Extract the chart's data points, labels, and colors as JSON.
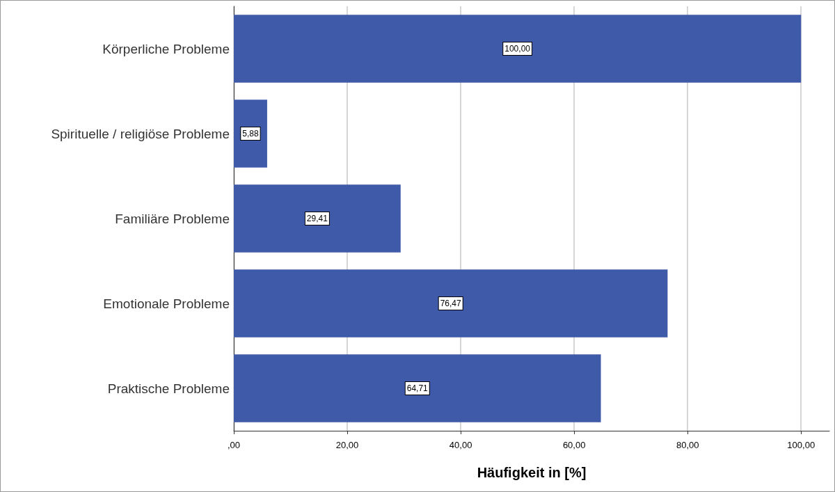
{
  "chart_data": {
    "type": "bar",
    "orientation": "horizontal",
    "xlabel": "Häufigkeit in [%]",
    "categories": [
      "Körperliche Probleme",
      "Spirituelle / religiöse Probleme",
      "Familiäre Probleme",
      "Emotionale Probleme",
      "Praktische Probleme"
    ],
    "values": [
      100,
      5.88,
      29.41,
      76.47,
      64.71
    ],
    "value_labels": [
      "100,00",
      "5,88",
      "29,41",
      "76,47",
      "64,71"
    ],
    "color": "#3f5aa8",
    "xlim": [
      0,
      105
    ],
    "xticks": [
      {
        "value": 0,
        "label": ",00"
      },
      {
        "value": 20,
        "label": "20,00"
      },
      {
        "value": 40,
        "label": "40,00"
      },
      {
        "value": 60,
        "label": "60,00"
      },
      {
        "value": 80,
        "label": "80,00"
      },
      {
        "value": 100,
        "label": "100,00"
      }
    ],
    "grid": "x"
  }
}
